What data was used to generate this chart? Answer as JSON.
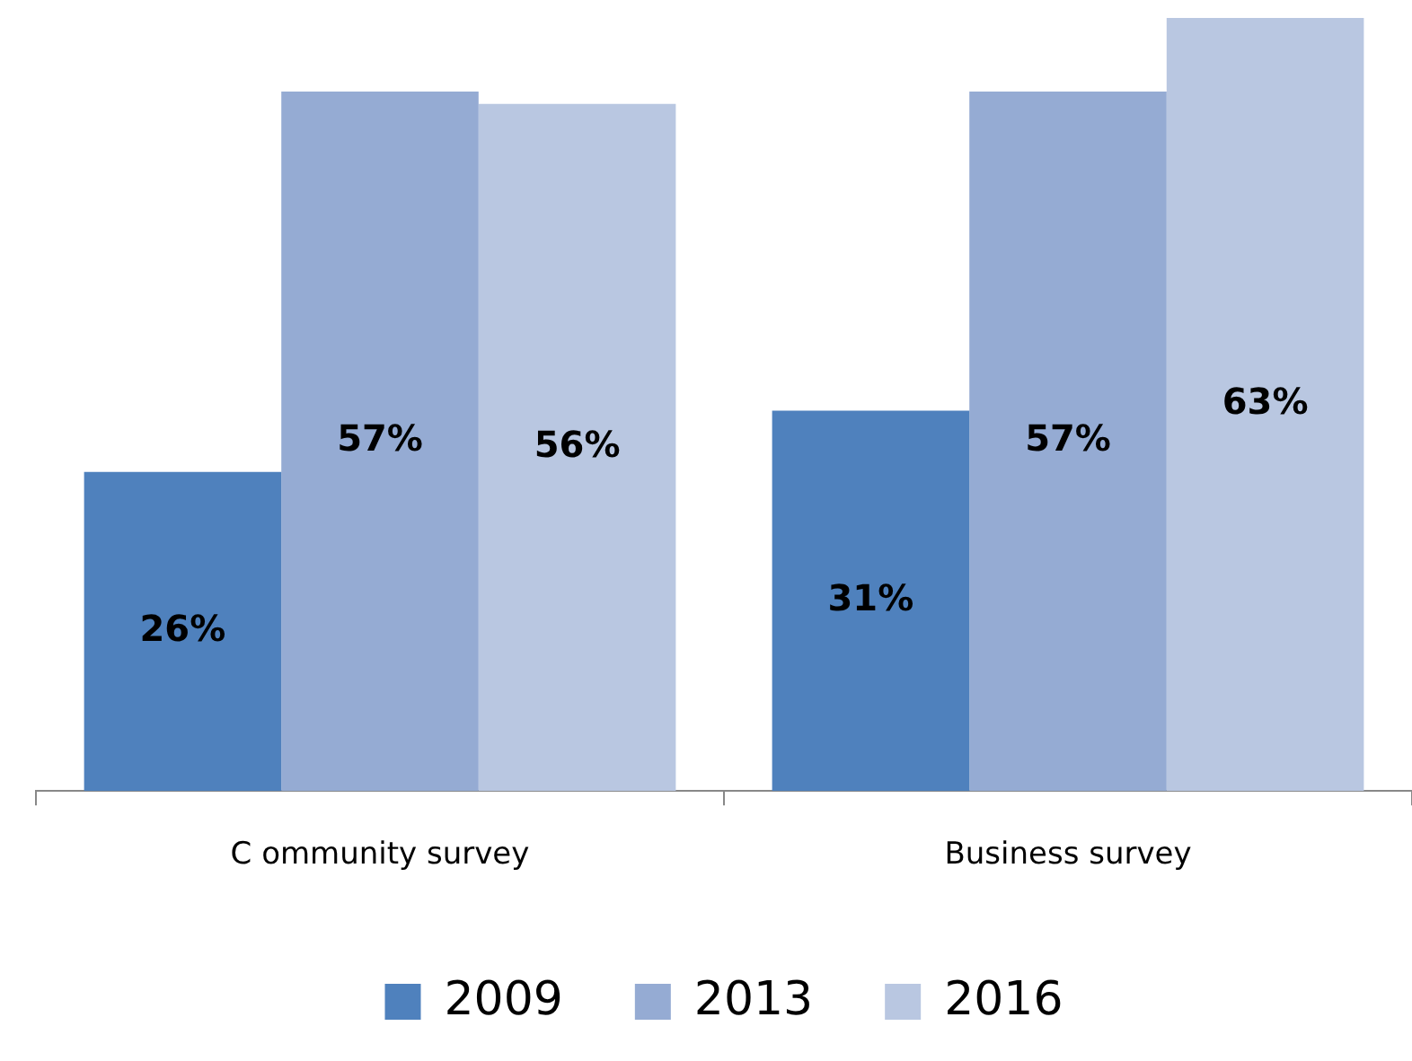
{
  "chart_data": {
    "type": "bar",
    "categories": [
      "C ommunity survey",
      "Business survey"
    ],
    "series": [
      {
        "name": "2009",
        "color": "#4f81bd",
        "values": [
          26,
          31
        ],
        "value_labels": [
          "26%",
          "31%"
        ]
      },
      {
        "name": "2013",
        "color": "#95abd3",
        "values": [
          57,
          57
        ],
        "value_labels": [
          "57%",
          "57%"
        ]
      },
      {
        "name": "2016",
        "color": "#b9c7e1",
        "values": [
          56,
          63
        ],
        "value_labels": [
          "56%",
          "63%"
        ]
      }
    ],
    "legend": "bottom",
    "grid": false
  }
}
